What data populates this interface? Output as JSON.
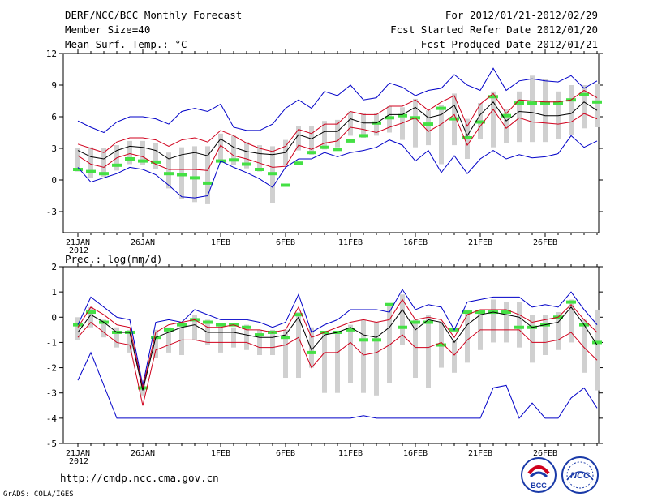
{
  "header": {
    "title_line1": "DERF/NCC/BCC Monthly Forecast",
    "title_line2": "Member Size=40",
    "title_line3": "Mean Surf. Temp.: °C",
    "right_line1": "For 2012/01/21-2012/02/29",
    "right_line2": "Fcst Started Refer Date 2012/01/20",
    "right_line3": "Fcst Produced Date 2012/01/21"
  },
  "footer": {
    "url": "http://cmdp.ncc.cma.gov.cn",
    "grads": "GrADS: COLA/IGES",
    "logo1_text": "BCC",
    "logo2_text": "NCC"
  },
  "colors": {
    "envelope": "#0000c8",
    "percentile": "#d0001c",
    "mean": "#000000",
    "box": "#d0d0d0",
    "climate": "#44e044"
  },
  "chart_data": [
    {
      "type": "line",
      "title": "Mean Surf. Temp.: °C",
      "xlabel": "",
      "ylabel": "",
      "ylim": [
        -5,
        12
      ],
      "yticks": [
        -3,
        0,
        3,
        6,
        9,
        12
      ],
      "xticks": [
        {
          "day": 0,
          "label": "21JAN",
          "sub": "2012"
        },
        {
          "day": 5,
          "label": "26JAN"
        },
        {
          "day": 11,
          "label": "1FEB"
        },
        {
          "day": 16,
          "label": "6FEB"
        },
        {
          "day": 21,
          "label": "11FEB"
        },
        {
          "day": 26,
          "label": "16FEB"
        },
        {
          "day": 31,
          "label": "21FEB"
        },
        {
          "day": 36,
          "label": "26FEB"
        }
      ],
      "days": 40,
      "series": [
        {
          "name": "max",
          "values": [
            5.6,
            5.0,
            4.5,
            5.5,
            6.0,
            6.0,
            5.8,
            5.3,
            6.5,
            6.8,
            6.5,
            7.2,
            5.0,
            4.7,
            4.7,
            5.3,
            6.8,
            7.6,
            6.8,
            8.4,
            8.0,
            9.0,
            7.6,
            7.8,
            9.2,
            8.8,
            8.0,
            8.5,
            8.7,
            10.0,
            9.0,
            8.5,
            10.6,
            8.5,
            9.4,
            9.6,
            9.4,
            9.3,
            9.9,
            8.7,
            9.4
          ]
        },
        {
          "name": "p75",
          "values": [
            3.4,
            3.0,
            2.6,
            3.6,
            4.0,
            4.0,
            3.8,
            3.2,
            3.8,
            4.0,
            3.6,
            4.7,
            4.2,
            3.5,
            3.0,
            2.7,
            3.2,
            4.8,
            4.4,
            5.3,
            5.3,
            6.5,
            6.2,
            6.2,
            7.0,
            7.0,
            7.6,
            6.6,
            7.4,
            8.0,
            5.1,
            7.2,
            8.2,
            6.3,
            7.6,
            7.5,
            7.4,
            7.4,
            7.6,
            8.5,
            7.8
          ]
        },
        {
          "name": "mean",
          "values": [
            2.8,
            2.2,
            2.0,
            2.8,
            3.2,
            3.1,
            2.8,
            2.0,
            2.4,
            2.6,
            2.3,
            3.9,
            3.1,
            2.7,
            2.5,
            2.4,
            2.6,
            4.3,
            3.9,
            4.6,
            4.6,
            5.8,
            5.4,
            5.4,
            6.2,
            6.2,
            6.9,
            5.9,
            6.2,
            7.1,
            4.2,
            6.2,
            7.4,
            5.6,
            6.5,
            6.4,
            6.1,
            6.1,
            6.3,
            7.4,
            6.6
          ]
        },
        {
          "name": "p25",
          "values": [
            2.3,
            1.5,
            1.2,
            2.1,
            2.5,
            2.2,
            1.5,
            1.0,
            1.0,
            1.0,
            0.9,
            3.3,
            2.3,
            2.0,
            1.6,
            1.2,
            1.3,
            3.3,
            2.9,
            3.5,
            3.7,
            5.0,
            4.8,
            4.5,
            5.0,
            5.4,
            5.9,
            4.6,
            5.3,
            6.2,
            3.3,
            5.1,
            6.7,
            4.9,
            5.9,
            5.5,
            5.4,
            5.3,
            5.5,
            6.3,
            5.8
          ]
        },
        {
          "name": "min",
          "values": [
            1.2,
            -0.2,
            0.2,
            0.6,
            1.2,
            1.0,
            0.5,
            -0.5,
            -1.6,
            -1.7,
            -1.5,
            1.8,
            1.2,
            0.7,
            0.1,
            -0.7,
            1.2,
            2.0,
            2.0,
            2.6,
            2.2,
            2.6,
            2.8,
            3.1,
            3.8,
            3.3,
            1.8,
            2.8,
            0.7,
            2.3,
            0.6,
            2.0,
            2.8,
            2.0,
            2.4,
            2.1,
            2.2,
            2.5,
            4.2,
            3.1,
            3.7
          ]
        }
      ],
      "boxes": [
        [
          0.8,
          3.0
        ],
        [
          0.2,
          3.1
        ],
        [
          0.3,
          3.0
        ],
        [
          0.9,
          3.3
        ],
        [
          1.5,
          3.7
        ],
        [
          1.4,
          3.7
        ],
        [
          1.0,
          3.5
        ],
        [
          -0.8,
          2.6
        ],
        [
          -1.8,
          3.1
        ],
        [
          -2.1,
          3.2
        ],
        [
          -2.3,
          3.2
        ],
        [
          1.9,
          4.4
        ],
        [
          1.4,
          4.2
        ],
        [
          1.1,
          3.6
        ],
        [
          0.8,
          3.3
        ],
        [
          -2.2,
          3.2
        ],
        [
          1.4,
          3.8
        ],
        [
          2.8,
          5.1
        ],
        [
          2.4,
          5.1
        ],
        [
          2.9,
          5.6
        ],
        [
          3.1,
          5.7
        ],
        [
          4.2,
          6.5
        ],
        [
          4.0,
          6.3
        ],
        [
          4.2,
          6.3
        ],
        [
          4.5,
          7.0
        ],
        [
          3.8,
          6.9
        ],
        [
          3.1,
          7.7
        ],
        [
          3.3,
          6.6
        ],
        [
          1.5,
          7.1
        ],
        [
          3.3,
          8.2
        ],
        [
          2.0,
          5.8
        ],
        [
          3.9,
          7.3
        ],
        [
          3.1,
          8.4
        ],
        [
          3.5,
          6.7
        ],
        [
          3.6,
          8.4
        ],
        [
          3.6,
          9.9
        ],
        [
          3.6,
          9.6
        ],
        [
          3.9,
          8.4
        ],
        [
          4.3,
          9.0
        ],
        [
          4.9,
          9.0
        ],
        [
          5.0,
          9.1
        ]
      ],
      "climate": [
        1.0,
        0.8,
        0.6,
        1.4,
        2.0,
        1.8,
        1.7,
        0.6,
        0.5,
        0.2,
        -0.3,
        1.8,
        1.9,
        1.5,
        1.0,
        0.6,
        -0.5,
        1.6,
        2.6,
        3.1,
        2.9,
        3.7,
        4.2,
        5.4,
        5.9,
        6.1,
        5.9,
        5.3,
        6.8,
        5.8,
        4.0,
        5.5,
        7.9,
        6.1,
        7.3,
        7.3,
        7.3,
        7.3,
        7.6,
        8.1,
        7.4
      ]
    },
    {
      "type": "line",
      "title": "Prec.: log(mm/d)",
      "xlabel": "",
      "ylabel": "",
      "ylim": [
        -5,
        2
      ],
      "yticks": [
        -5,
        -4,
        -3,
        -2,
        -1,
        0,
        1,
        2
      ],
      "xticks": [
        {
          "day": 0,
          "label": "21JAN",
          "sub": "2012"
        },
        {
          "day": 5,
          "label": "26JAN"
        },
        {
          "day": 11,
          "label": "1FEB"
        },
        {
          "day": 16,
          "label": "6FEB"
        },
        {
          "day": 21,
          "label": "11FEB"
        },
        {
          "day": 26,
          "label": "16FEB"
        },
        {
          "day": 31,
          "label": "21FEB"
        },
        {
          "day": 36,
          "label": "26FEB"
        }
      ],
      "days": 40,
      "series": [
        {
          "name": "max",
          "values": [
            -0.3,
            0.8,
            0.4,
            0.0,
            -0.1,
            -2.7,
            -0.2,
            -0.1,
            -0.2,
            0.3,
            0.1,
            -0.1,
            -0.1,
            -0.1,
            -0.2,
            -0.4,
            -0.2,
            0.9,
            -0.6,
            -0.3,
            -0.1,
            0.3,
            0.3,
            0.3,
            0.2,
            1.1,
            0.3,
            0.5,
            0.4,
            -0.5,
            0.6,
            0.7,
            0.8,
            0.8,
            0.8,
            0.4,
            0.5,
            0.4,
            1.0,
            0.3,
            -0.3
          ]
        },
        {
          "name": "p75",
          "values": [
            -0.4,
            0.4,
            0.1,
            -0.3,
            -0.4,
            -2.8,
            -0.6,
            -0.3,
            -0.2,
            -0.1,
            -0.4,
            -0.4,
            -0.3,
            -0.5,
            -0.5,
            -0.6,
            -0.5,
            0.4,
            -0.8,
            -0.6,
            -0.4,
            -0.2,
            -0.1,
            -0.2,
            -0.1,
            0.7,
            -0.1,
            0.0,
            -0.1,
            -0.8,
            0.1,
            0.3,
            0.3,
            0.3,
            0.1,
            -0.2,
            -0.1,
            0.0,
            0.5,
            -0.1,
            -0.6
          ]
        },
        {
          "name": "mean",
          "values": [
            -0.6,
            0.1,
            -0.2,
            -0.6,
            -0.6,
            -2.9,
            -0.8,
            -0.6,
            -0.4,
            -0.3,
            -0.6,
            -0.6,
            -0.6,
            -0.7,
            -0.8,
            -0.8,
            -0.7,
            0.0,
            -1.3,
            -0.7,
            -0.6,
            -0.4,
            -0.7,
            -0.8,
            -0.4,
            0.3,
            -0.5,
            -0.1,
            -0.2,
            -1.0,
            -0.3,
            0.1,
            0.2,
            0.1,
            0.0,
            -0.4,
            -0.3,
            -0.2,
            0.4,
            -0.3,
            -1.1
          ]
        },
        {
          "name": "p25",
          "values": [
            -0.8,
            -0.2,
            -0.6,
            -1.0,
            -1.1,
            -3.5,
            -1.3,
            -1.1,
            -0.9,
            -0.9,
            -1.0,
            -1.0,
            -1.0,
            -1.0,
            -1.2,
            -1.2,
            -1.1,
            -0.8,
            -2.0,
            -1.4,
            -1.4,
            -1.0,
            -1.5,
            -1.4,
            -1.1,
            -0.7,
            -1.2,
            -1.2,
            -1.0,
            -1.5,
            -0.9,
            -0.5,
            -0.5,
            -0.5,
            -0.5,
            -1.0,
            -1.0,
            -0.9,
            -0.6,
            -1.2,
            -1.7
          ]
        },
        {
          "name": "min",
          "values": [
            -2.5,
            -1.4,
            -2.7,
            -4.0,
            -4.0,
            -4.0,
            -4.0,
            -4.0,
            -4.0,
            -4.0,
            -4.0,
            -4.0,
            -4.0,
            -4.0,
            -4.0,
            -4.0,
            -4.0,
            -4.0,
            -4.0,
            -4.0,
            -4.0,
            -4.0,
            -3.9,
            -4.0,
            -4.0,
            -4.0,
            -4.0,
            -4.0,
            -4.0,
            -4.0,
            -4.0,
            -4.0,
            -2.8,
            -2.7,
            -4.0,
            -3.4,
            -4.0,
            -4.0,
            -3.2,
            -2.8,
            -3.6
          ]
        }
      ],
      "boxes": [
        [
          -0.9,
          0.0
        ],
        [
          -0.4,
          0.4
        ],
        [
          -0.8,
          -0.1
        ],
        [
          -1.2,
          -0.4
        ],
        [
          -1.4,
          -0.5
        ],
        [
          -3.1,
          -2.5
        ],
        [
          -1.6,
          -0.5
        ],
        [
          -1.4,
          -0.4
        ],
        [
          -1.5,
          -0.2
        ],
        [
          -0.9,
          0.1
        ],
        [
          -1.1,
          -0.1
        ],
        [
          -1.4,
          -0.3
        ],
        [
          -1.2,
          -0.4
        ],
        [
          -1.3,
          -0.3
        ],
        [
          -1.5,
          -0.5
        ],
        [
          -1.5,
          -0.5
        ],
        [
          -2.4,
          -0.5
        ],
        [
          -2.4,
          0.2
        ],
        [
          -2.0,
          -0.4
        ],
        [
          -3.0,
          -0.6
        ],
        [
          -3.0,
          -0.6
        ],
        [
          -2.6,
          -0.3
        ],
        [
          -3.0,
          -0.1
        ],
        [
          -3.1,
          -0.2
        ],
        [
          -2.6,
          0.5
        ],
        [
          -1.1,
          0.9
        ],
        [
          -2.4,
          -0.1
        ],
        [
          -2.8,
          0.1
        ],
        [
          -2.0,
          -0.2
        ],
        [
          -2.2,
          -0.9
        ],
        [
          -1.8,
          0.3
        ],
        [
          -1.3,
          0.3
        ],
        [
          -1.0,
          0.7
        ],
        [
          -1.0,
          0.6
        ],
        [
          -1.2,
          0.6
        ],
        [
          -1.8,
          0.1
        ],
        [
          -1.5,
          0.1
        ],
        [
          -1.3,
          0.2
        ],
        [
          -1.0,
          0.7
        ],
        [
          -2.2,
          -0.1
        ],
        [
          -2.9,
          0.3
        ]
      ],
      "climate": [
        -0.3,
        0.2,
        -0.2,
        -0.6,
        -0.6,
        -2.8,
        -0.8,
        -0.5,
        -0.3,
        -0.1,
        -0.2,
        -0.3,
        -0.3,
        -0.4,
        -0.7,
        -0.6,
        -0.8,
        0.1,
        -1.4,
        -0.6,
        -0.6,
        -0.5,
        -0.9,
        -0.9,
        0.5,
        -0.4,
        -0.2,
        -0.2,
        -1.1,
        -0.5,
        0.2,
        0.2,
        0.2,
        0.2,
        -0.4,
        -0.4,
        -0.3,
        0.0,
        0.6,
        -0.3,
        -1.0
      ]
    }
  ]
}
